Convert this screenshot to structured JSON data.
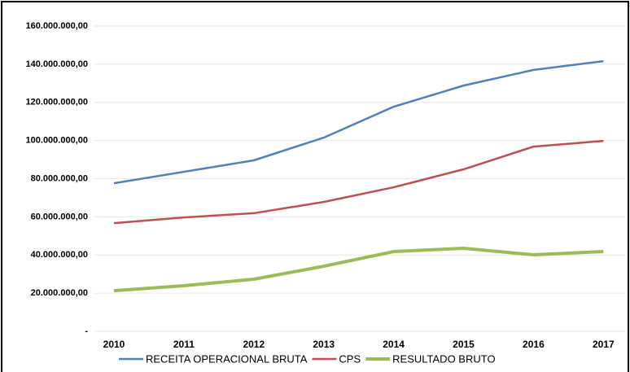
{
  "chart_data": {
    "type": "line",
    "categories": [
      "2010",
      "2011",
      "2012",
      "2013",
      "2014",
      "2015",
      "2016",
      "2017"
    ],
    "series": [
      {
        "name": "RECEITA OPERACIONAL BRUTA",
        "color": "#4f81bd",
        "values": [
          77600000,
          83600000,
          89600000,
          101500000,
          117700000,
          128800000,
          137000000,
          141600000
        ]
      },
      {
        "name": "CPS",
        "color": "#c0504d",
        "values": [
          56700000,
          59700000,
          61900000,
          67800000,
          75500000,
          84900000,
          96800000,
          99800000
        ]
      },
      {
        "name": "RESULTADO BRUTO",
        "color": "#9bbb59",
        "values": [
          21300000,
          23900000,
          27300000,
          34100000,
          41800000,
          43500000,
          40100000,
          41800000
        ]
      }
    ],
    "ylim": [
      0,
      160000000
    ],
    "yticks": [
      {
        "value": 0,
        "label": "-"
      },
      {
        "value": 20000000,
        "label": "20.000.000,00"
      },
      {
        "value": 40000000,
        "label": "40.000.000,00"
      },
      {
        "value": 60000000,
        "label": "60.000.000,00"
      },
      {
        "value": 80000000,
        "label": "80.000.000,00"
      },
      {
        "value": 100000000,
        "label": "100.000.000,00"
      },
      {
        "value": 120000000,
        "label": "120.000.000,00"
      },
      {
        "value": 140000000,
        "label": "140.000.000,00"
      },
      {
        "value": 160000000,
        "label": "160.000.000,00"
      }
    ],
    "grid": true,
    "legend": "bottom"
  }
}
